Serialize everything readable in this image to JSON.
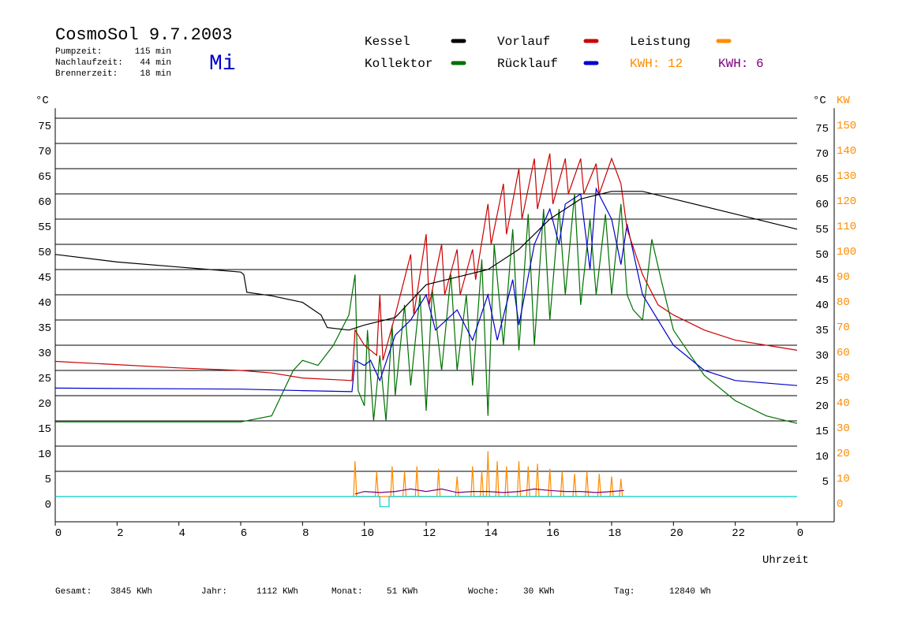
{
  "chart_data": {
    "type": "line",
    "title": "CosmoSol 9.7.2003",
    "weekday": "Mi",
    "info": [
      {
        "label": "Pumpzeit:",
        "value": "115 min"
      },
      {
        "label": "Nachlaufzeit:",
        "value": "44 min"
      },
      {
        "label": "Brennerzeit:",
        "value": "18 min"
      }
    ],
    "kwh_labels": [
      {
        "text": "KWH: 12",
        "color": "#ff8c00"
      },
      {
        "text": "KWH: 6",
        "color": "#800080"
      }
    ],
    "ylabel": "°C",
    "y2label_unit": "°C",
    "y2label": "KW",
    "xlabel": "Uhrzeit",
    "xlim": [
      0,
      24
    ],
    "xticks": [
      0,
      2,
      4,
      6,
      8,
      10,
      12,
      14,
      16,
      18,
      20,
      22,
      {
        "value": 24,
        "label": "0"
      }
    ],
    "ylim": [
      -5,
      77
    ],
    "yticks": [
      0,
      5,
      10,
      15,
      20,
      25,
      30,
      35,
      40,
      45,
      50,
      55,
      60,
      65,
      70,
      75
    ],
    "yticks_right": [
      5,
      10,
      15,
      20,
      25,
      30,
      35,
      40,
      45,
      50,
      55,
      60,
      65,
      70,
      75
    ],
    "y2lim": [
      -10,
      154
    ],
    "y2ticks": [
      0,
      10,
      20,
      30,
      40,
      50,
      60,
      70,
      80,
      90,
      100,
      110,
      120,
      130,
      140,
      150
    ],
    "grid": true,
    "series": [
      {
        "name": "Kessel",
        "color": "#000000",
        "x": [
          0,
          2,
          4,
          6,
          6.1,
          6.2,
          7,
          8,
          8.6,
          8.8,
          9.5,
          10,
          11,
          12,
          13,
          14,
          15,
          16,
          17,
          18,
          19,
          20,
          22,
          24
        ],
        "values": [
          48,
          46.5,
          45.5,
          44.5,
          44,
          40.5,
          39.8,
          38.5,
          36,
          33.5,
          33,
          34,
          35.5,
          42,
          43.5,
          45,
          49,
          55,
          59,
          60.5,
          60.5,
          59,
          56,
          53
        ]
      },
      {
        "name": "Vorlauf",
        "color": "#cc0000",
        "x": [
          0,
          4,
          6,
          7,
          8,
          9.6,
          9.7,
          10,
          10.4,
          10.5,
          10.6,
          11,
          11.5,
          11.6,
          12,
          12.1,
          12.5,
          12.6,
          13,
          13.1,
          13.5,
          13.6,
          14,
          14.1,
          14.5,
          14.6,
          15,
          15.1,
          15.5,
          15.6,
          16,
          16.1,
          16.5,
          16.6,
          17,
          17.1,
          17.5,
          17.6,
          18,
          18.3,
          18.5,
          19,
          19.5,
          20,
          21,
          22,
          24
        ],
        "values": [
          26.8,
          25.5,
          25,
          24.5,
          23.5,
          23,
          33,
          30,
          28,
          40,
          27,
          36,
          48,
          36,
          52,
          38,
          50,
          40,
          49,
          40,
          49,
          43,
          58,
          50,
          62,
          52,
          65,
          55,
          67,
          57,
          68,
          58,
          67,
          60,
          67,
          60,
          66,
          60,
          67,
          62,
          53,
          44,
          38,
          36,
          33,
          31,
          29
        ]
      },
      {
        "name": "Leistung",
        "color": "#ff8c00",
        "axis": "y2",
        "x": [
          9.65,
          9.7,
          9.75,
          10.35,
          10.4,
          10.45,
          10.85,
          10.9,
          10.95,
          11.25,
          11.3,
          11.35,
          11.65,
          11.7,
          11.75,
          12.35,
          12.4,
          12.45,
          12.95,
          13.0,
          13.05,
          13.45,
          13.5,
          13.55,
          13.75,
          13.8,
          13.85,
          13.95,
          14.0,
          14.05,
          14.25,
          14.3,
          14.35,
          14.55,
          14.6,
          14.65,
          14.95,
          15.0,
          15.05,
          15.25,
          15.3,
          15.35,
          15.55,
          15.6,
          15.65,
          15.95,
          16.0,
          16.05,
          16.35,
          16.4,
          16.45,
          16.75,
          16.8,
          16.85,
          17.15,
          17.2,
          17.25,
          17.55,
          17.6,
          17.65,
          17.95,
          18.0,
          18.05,
          18.25,
          18.3,
          18.35
        ],
        "values": [
          0,
          14,
          0,
          0,
          10,
          0,
          0,
          12,
          0,
          0,
          10,
          0,
          0,
          12,
          0,
          0,
          11,
          0,
          0,
          8,
          0,
          0,
          12,
          0,
          0,
          10,
          0,
          0,
          18,
          0,
          0,
          14,
          0,
          0,
          12,
          0,
          0,
          14,
          0,
          0,
          12,
          0,
          0,
          13,
          0,
          0,
          11,
          0,
          0,
          10,
          0,
          0,
          9,
          0,
          0,
          10,
          0,
          0,
          9,
          0,
          0,
          8,
          0,
          0,
          7,
          0
        ]
      },
      {
        "name": "Kollektor",
        "color": "#007000",
        "x": [
          0,
          6,
          7,
          7.7,
          8,
          8.5,
          9,
          9.5,
          9.7,
          9.8,
          10,
          10.1,
          10.3,
          10.5,
          10.7,
          10.9,
          11,
          11.3,
          11.5,
          11.8,
          12,
          12.2,
          12.5,
          12.8,
          13,
          13.3,
          13.5,
          13.8,
          14,
          14.2,
          14.5,
          14.8,
          15,
          15.3,
          15.5,
          15.8,
          16,
          16.3,
          16.5,
          16.8,
          17,
          17.3,
          17.5,
          17.8,
          18,
          18.3,
          18.5,
          18.7,
          19,
          19.3,
          19.6,
          20,
          21,
          22,
          23,
          24
        ],
        "values": [
          14.8,
          14.8,
          16,
          25,
          27,
          26,
          30,
          36,
          44,
          21,
          18,
          33,
          15,
          28,
          15,
          34,
          20,
          38,
          22,
          40,
          17,
          41,
          25,
          44,
          25,
          40,
          22,
          47,
          16,
          50,
          30,
          53,
          29,
          56,
          30,
          57,
          35,
          57,
          40,
          60,
          38,
          55,
          40,
          56,
          40,
          58,
          40,
          37,
          35,
          51,
          43,
          33,
          24,
          19,
          16,
          14.5
        ]
      },
      {
        "name": "Rücklauf",
        "color": "#0000cc",
        "x": [
          0,
          6,
          8,
          9.6,
          9.7,
          10,
          10.2,
          10.5,
          11,
          11.5,
          12,
          12.3,
          13,
          13.5,
          14,
          14.3,
          14.8,
          15,
          15.5,
          16,
          16.3,
          16.5,
          17,
          17.3,
          17.5,
          18,
          18.3,
          18.5,
          19,
          20,
          21,
          22,
          24
        ],
        "values": [
          21.5,
          21.3,
          21,
          20.8,
          27,
          26,
          27,
          23,
          32,
          35,
          40,
          33,
          37,
          31,
          40,
          31,
          43,
          34,
          50,
          57,
          50,
          58,
          60,
          45,
          61,
          55,
          46,
          54,
          40,
          30,
          25,
          23,
          22
        ]
      },
      {
        "color": "#00cccc",
        "x": [
          0,
          10.5,
          10.5,
          10.8,
          10.8,
          24
        ],
        "values": [
          0,
          0,
          -2,
          -2,
          0,
          0
        ]
      },
      {
        "color": "#800080",
        "x": [
          9.7,
          10,
          10.5,
          11,
          11.5,
          12,
          12.5,
          13,
          13.5,
          14,
          14.5,
          15,
          15.5,
          16,
          16.5,
          17,
          17.5,
          18,
          18.4
        ],
        "values": [
          0.5,
          1,
          0.8,
          1,
          1.5,
          1,
          1.5,
          0.8,
          1,
          1,
          0.8,
          1,
          1.5,
          1.2,
          1,
          1,
          0.8,
          1,
          1.2
        ]
      }
    ],
    "footer": [
      {
        "label": "Gesamt:",
        "value": "3845 KWh"
      },
      {
        "label": "Jahr:",
        "value": "1112 KWh"
      },
      {
        "label": "Monat:",
        "value": "51 KWh"
      },
      {
        "label": "Woche:",
        "value": "30 KWh"
      },
      {
        "label": "Tag:",
        "value": "12840 Wh"
      }
    ]
  }
}
